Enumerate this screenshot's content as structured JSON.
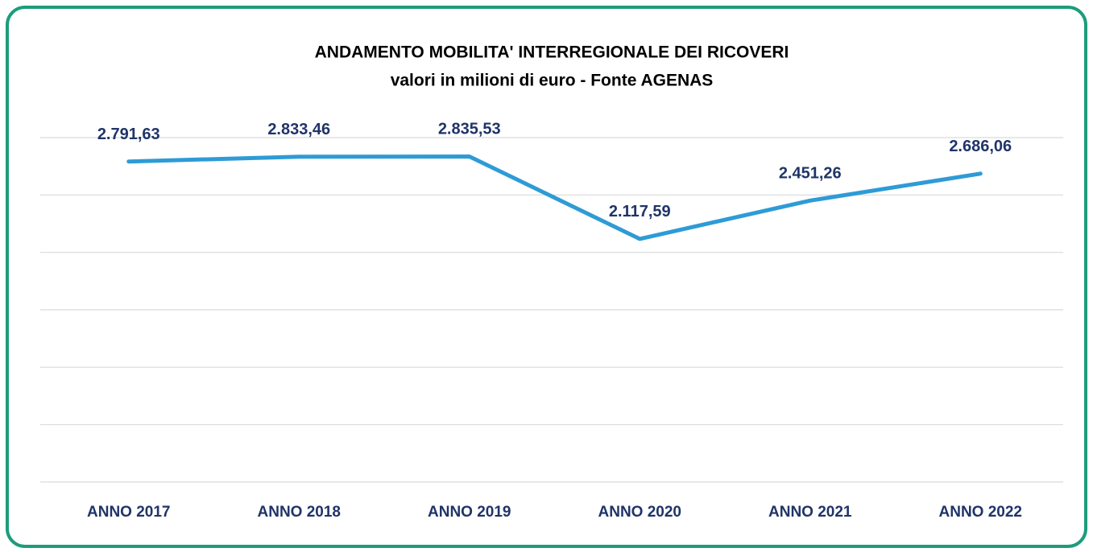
{
  "chart_data": {
    "type": "line",
    "title": "ANDAMENTO MOBILITA' INTERREGIONALE DEI RICOVERI",
    "subtitle": "valori in milioni di euro - Fonte AGENAS",
    "categories": [
      "ANNO 2017",
      "ANNO 2018",
      "ANNO 2019",
      "ANNO 2020",
      "ANNO 2021",
      "ANNO 2022"
    ],
    "values": [
      2791.63,
      2833.46,
      2835.53,
      2117.59,
      2451.26,
      2686.06
    ],
    "value_labels": [
      "2.791,63",
      "2.833,46",
      "2.835,53",
      "2.117,59",
      "2.451,26",
      "2.686,06"
    ],
    "color": "#2e9bd6",
    "ylim": [
      0,
      3000
    ],
    "yticks": [
      0,
      500,
      1000,
      1500,
      2000,
      2500,
      3000
    ],
    "grid": true
  }
}
